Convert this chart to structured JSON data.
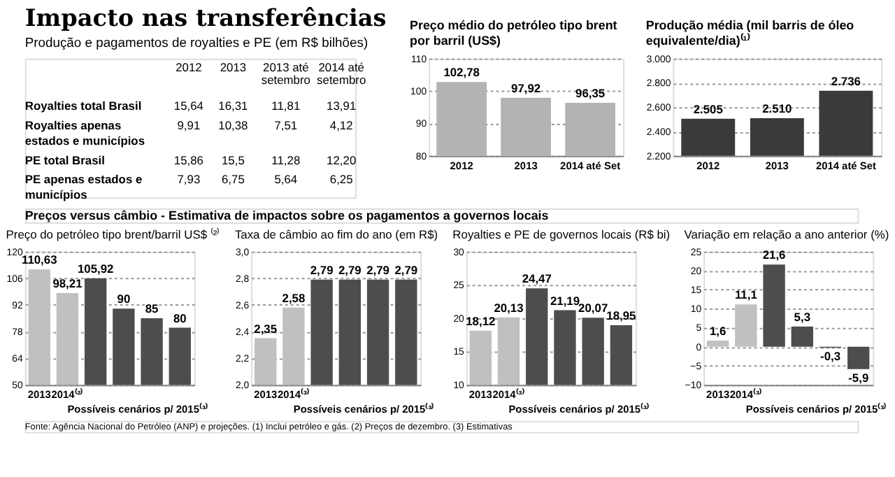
{
  "chart_data": [
    {
      "type": "other",
      "title": "Impacto nas transferências",
      "subtitle": "Produção e pagamentos de royalties e PE (em R$ bilhões)",
      "categories": [
        "2012",
        "2013",
        "2013 até setembro",
        "2014 até setembro"
      ],
      "series": [
        {
          "name": "Royalties total Brasil",
          "values": [
            15.64,
            16.31,
            11.81,
            13.91
          ],
          "value_labels": [
            "15,64",
            "16,31",
            "11,81",
            "13,91"
          ]
        },
        {
          "name": "Royalties apenas estados e municípios",
          "values": [
            9.91,
            10.38,
            7.51,
            4.12
          ],
          "value_labels": [
            "9,91",
            "10,38",
            "7,51",
            "4,12"
          ]
        },
        {
          "name": "PE total Brasil",
          "values": [
            15.86,
            15.5,
            11.28,
            12.2
          ],
          "value_labels": [
            "15,86",
            "15,5",
            "11,28",
            "12,20"
          ]
        },
        {
          "name": "PE apenas estados e municípios",
          "values": [
            7.93,
            6.75,
            5.64,
            6.25
          ],
          "value_labels": [
            "7,93",
            "6,75",
            "5,64",
            "6,25"
          ]
        }
      ]
    },
    {
      "type": "bar",
      "title": "Preço médio do petróleo tipo brent por barril (US$)",
      "categories": [
        "2012",
        "2013",
        "2014 até Set"
      ],
      "values": [
        102.78,
        97.92,
        96.35
      ],
      "colors": [
        "#b3b3b3",
        "#b3b3b3",
        "#b3b3b3"
      ],
      "value_labels": [
        "102,78",
        "97,92",
        "96,35"
      ],
      "ylim": [
        80,
        110
      ],
      "yticks": [
        80,
        90,
        100,
        110
      ],
      "grid": "y"
    },
    {
      "type": "bar",
      "title": "Produção média (mil barris de óleo equivalente/dia)⁽¹⁾",
      "categories": [
        "2012",
        "2013",
        "2014 até Set"
      ],
      "values": [
        2505,
        2510,
        2736
      ],
      "colors": [
        "#3a3a3a",
        "#3a3a3a",
        "#3a3a3a"
      ],
      "value_labels": [
        "2.505",
        "2.510",
        "2.736"
      ],
      "ylim": [
        2200,
        3000
      ],
      "yticks": [
        {
          "value": 2200,
          "label": "2.200"
        },
        {
          "value": 2400,
          "label": "2.400"
        },
        {
          "value": 2600,
          "label": "2.600"
        },
        {
          "value": 2800,
          "label": "2.800"
        },
        {
          "value": 3000,
          "label": "3.000"
        }
      ],
      "grid": "y"
    },
    {
      "type": "bar",
      "title": "Preço do petróleo tipo brent/barril US$ ⁽²⁾",
      "categories": [
        "2013",
        "2014⁽²⁾",
        null,
        null,
        null,
        null
      ],
      "values": [
        110.63,
        98.21,
        105.92,
        90,
        85,
        80
      ],
      "colors": [
        "#c0c0c0",
        "#c0c0c0",
        "#4d4d4d",
        "#4d4d4d",
        "#4d4d4d",
        "#4d4d4d"
      ],
      "value_labels": [
        "110,63",
        "98,21",
        "105,92",
        "90",
        "85",
        "80"
      ],
      "ylim": [
        50,
        120
      ],
      "yticks": [
        50,
        64,
        78,
        92,
        106,
        120
      ],
      "grid": "y",
      "annotations": [
        "Possíveis cenários p/ 2015⁽³⁾",
        "Preços versus câmbio - Estimativa de impactos sobre os pagamentos a governos locais",
        "Fonte: Agência Nacional do Petróleo (ANP) e projeções. (1) Inclui petróleo e gás. (2) Preços de dezembro. (3) Estimativas"
      ]
    },
    {
      "type": "bar",
      "title": "Taxa de câmbio ao fim do ano (em R$)",
      "categories": [
        "2013",
        "2014⁽³⁾",
        null,
        null,
        null,
        null
      ],
      "values": [
        2.35,
        2.58,
        2.79,
        2.79,
        2.79,
        2.79
      ],
      "colors": [
        "#c0c0c0",
        "#c0c0c0",
        "#4d4d4d",
        "#4d4d4d",
        "#4d4d4d",
        "#4d4d4d"
      ],
      "value_labels": [
        "2,35",
        "2,58",
        "2,79",
        "2,79",
        "2,79",
        "2,79"
      ],
      "ylim": [
        2.0,
        3.0
      ],
      "yticks": [
        {
          "value": 2.0,
          "label": "2,0"
        },
        {
          "value": 2.2,
          "label": "2,2"
        },
        {
          "value": 2.4,
          "label": "2,4"
        },
        {
          "value": 2.6,
          "label": "2,6"
        },
        {
          "value": 2.8,
          "label": "2,8"
        },
        {
          "value": 3.0,
          "label": "3,0"
        }
      ],
      "grid": "y",
      "annotations": [
        "Possíveis cenários p/ 2015⁽³⁾"
      ]
    },
    {
      "type": "bar",
      "title": "Royalties e PE de governos locais (R$ bi)",
      "categories": [
        "2013",
        "2014⁽³⁾",
        null,
        null,
        null,
        null
      ],
      "values": [
        18.12,
        20.13,
        24.47,
        21.19,
        20.07,
        18.95
      ],
      "colors": [
        "#c0c0c0",
        "#c0c0c0",
        "#4d4d4d",
        "#4d4d4d",
        "#4d4d4d",
        "#4d4d4d"
      ],
      "value_labels": [
        "18,12",
        "20,13",
        "24,47",
        "21,19",
        "20,07",
        "18,95"
      ],
      "ylim": [
        10,
        30
      ],
      "yticks": [
        10,
        15,
        20,
        25,
        30
      ],
      "grid": "y",
      "annotations": [
        "Possíveis cenários p/ 2015⁽³⁾"
      ]
    },
    {
      "type": "bar",
      "title": "Variação em relação a ano anterior (%)",
      "categories": [
        "2013",
        "2014⁽³⁾",
        null,
        null,
        null,
        null
      ],
      "values": [
        1.6,
        11.1,
        21.6,
        5.3,
        -0.3,
        -5.9
      ],
      "colors": [
        "#c0c0c0",
        "#c0c0c0",
        "#4d4d4d",
        "#4d4d4d",
        "#4d4d4d",
        "#4d4d4d"
      ],
      "value_labels": [
        "1,6",
        "11,1",
        "21,6",
        "5,3",
        "-0,3",
        "-5,9"
      ],
      "ylim": [
        -10,
        25
      ],
      "yticks": [
        -10,
        -5,
        0,
        5,
        10,
        15,
        20,
        25
      ],
      "grid": "y",
      "annotations": [
        "Possíveis cenários p/ 2015⁽³⁾"
      ]
    }
  ]
}
